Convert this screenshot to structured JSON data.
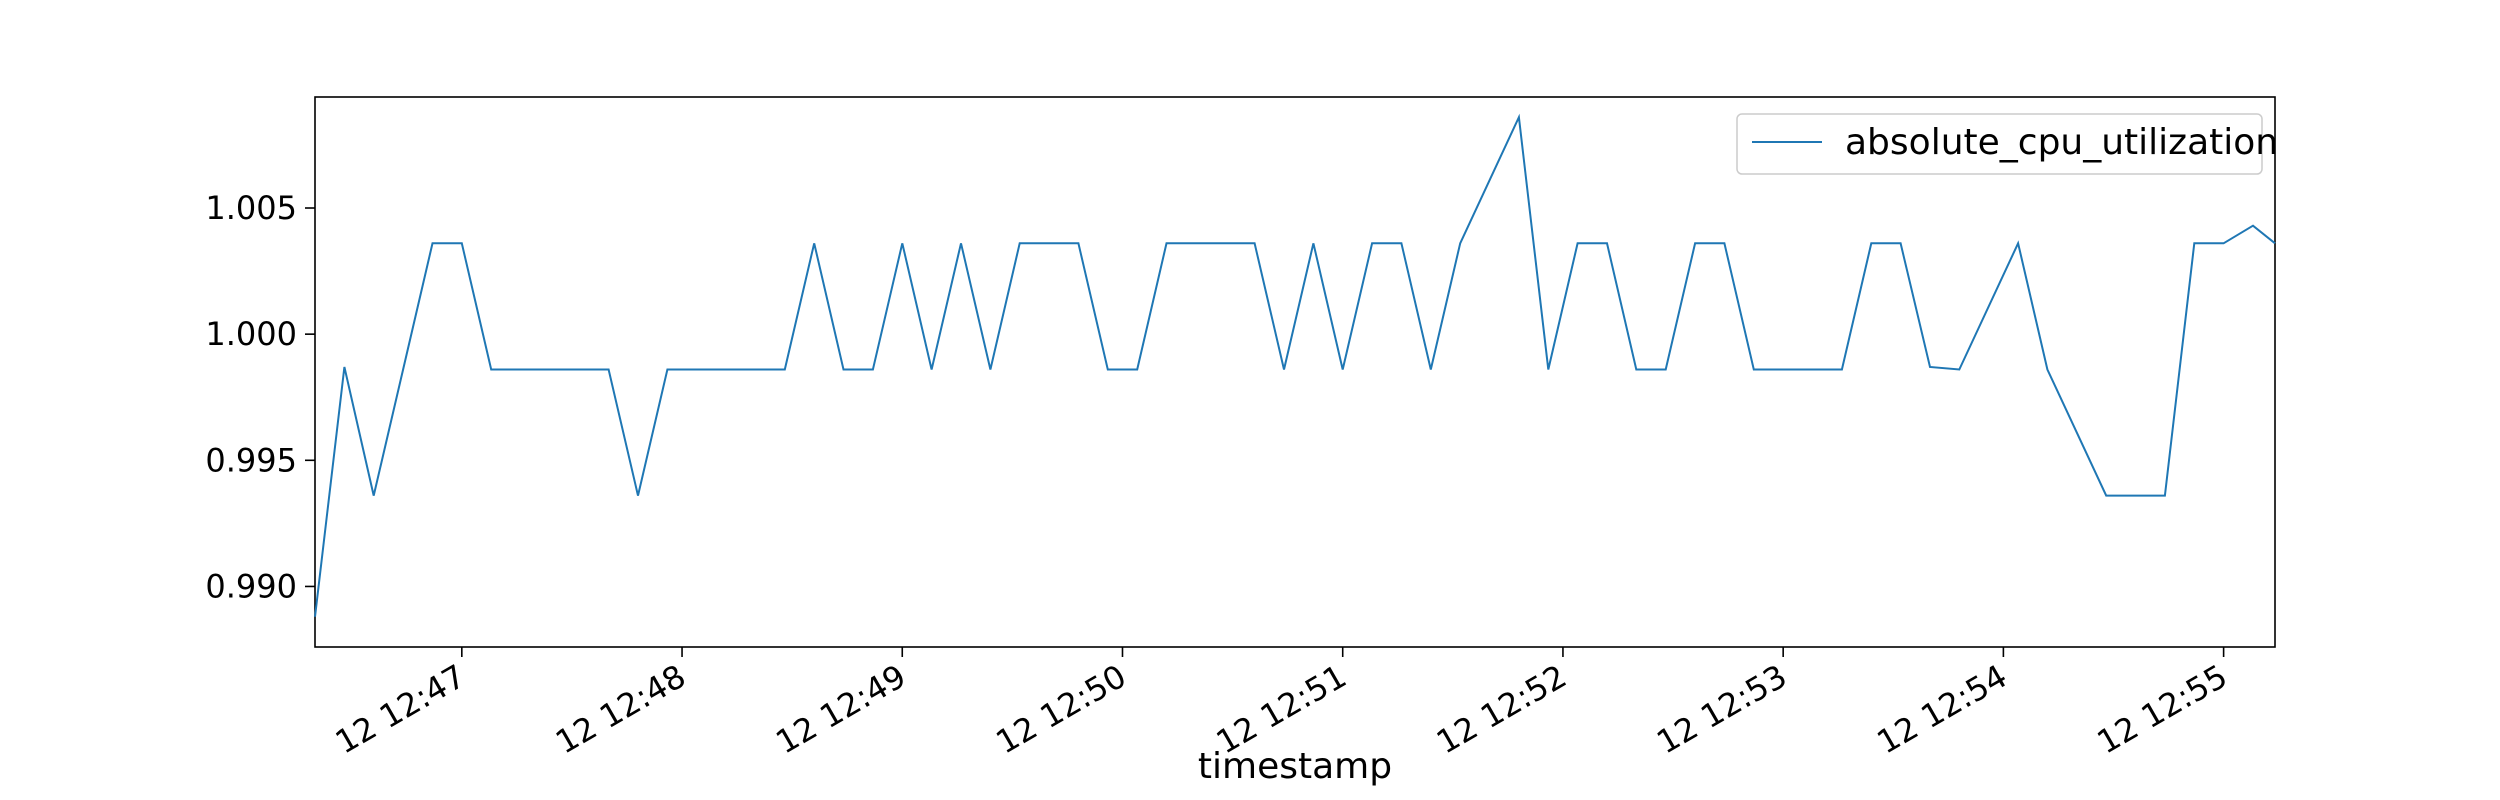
{
  "chart_data": {
    "type": "line",
    "xlabel": "timestamp",
    "ylabel": "",
    "x_ticks": [
      "12 12:47",
      "12 12:48",
      "12 12:49",
      "12 12:50",
      "12 12:51",
      "12 12:52",
      "12 12:53",
      "12 12:54",
      "12 12:55"
    ],
    "y_ticks": [
      "0.990",
      "0.995",
      "1.000",
      "1.005"
    ],
    "ylim": [
      0.9876,
      1.0094
    ],
    "xlim": [
      "12:46:20",
      "12:55:14"
    ],
    "grid": false,
    "legend": "top-right",
    "series": [
      {
        "name": "absolute_cpu_utilization",
        "color": "#1f77b4",
        "x": [
          "12:46:20",
          "12:46:28",
          "12:46:36",
          "12:46:44",
          "12:46:52",
          "12:47:00",
          "12:47:08",
          "12:47:16",
          "12:47:24",
          "12:47:32",
          "12:47:40",
          "12:47:48",
          "12:47:56",
          "12:48:04",
          "12:48:12",
          "12:48:20",
          "12:48:28",
          "12:48:36",
          "12:48:44",
          "12:48:52",
          "12:49:00",
          "12:49:08",
          "12:49:16",
          "12:49:24",
          "12:49:32",
          "12:49:40",
          "12:49:48",
          "12:49:56",
          "12:50:04",
          "12:50:12",
          "12:50:20",
          "12:50:28",
          "12:50:36",
          "12:50:44",
          "12:50:52",
          "12:51:00",
          "12:51:08",
          "12:51:16",
          "12:51:24",
          "12:51:32",
          "12:51:48",
          "12:51:56",
          "12:52:04",
          "12:52:12",
          "12:52:20",
          "12:52:28",
          "12:52:36",
          "12:52:44",
          "12:52:52",
          "12:53:08",
          "12:53:16",
          "12:53:24",
          "12:53:32",
          "12:53:40",
          "12:53:48",
          "12:54:04",
          "12:54:12",
          "12:54:28",
          "12:54:36",
          "12:54:44",
          "12:54:52",
          "12:55:00",
          "12:55:08",
          "12:55:14"
        ],
        "y": [
          0.9888,
          0.9987,
          0.9936,
          0.9986,
          1.0036,
          1.0036,
          0.9986,
          0.9986,
          0.9986,
          0.9986,
          0.9986,
          0.9936,
          0.9986,
          0.9986,
          0.9986,
          0.9986,
          0.9986,
          1.0036,
          0.9986,
          0.9986,
          1.0036,
          0.9986,
          1.0036,
          0.9986,
          1.0036,
          1.0036,
          1.0036,
          0.9986,
          0.9986,
          1.0036,
          1.0036,
          1.0036,
          1.0036,
          0.9986,
          1.0036,
          0.9986,
          1.0036,
          1.0036,
          0.9986,
          1.0036,
          1.0086,
          0.9986,
          1.0036,
          1.0036,
          0.9986,
          0.9986,
          1.0036,
          1.0036,
          0.9986,
          0.9986,
          0.9986,
          1.0036,
          1.0036,
          0.9987,
          0.9986,
          1.0036,
          0.9986,
          0.9936,
          0.9936,
          0.9936,
          1.0036,
          1.0036,
          1.0043,
          1.0036
        ]
      }
    ]
  }
}
